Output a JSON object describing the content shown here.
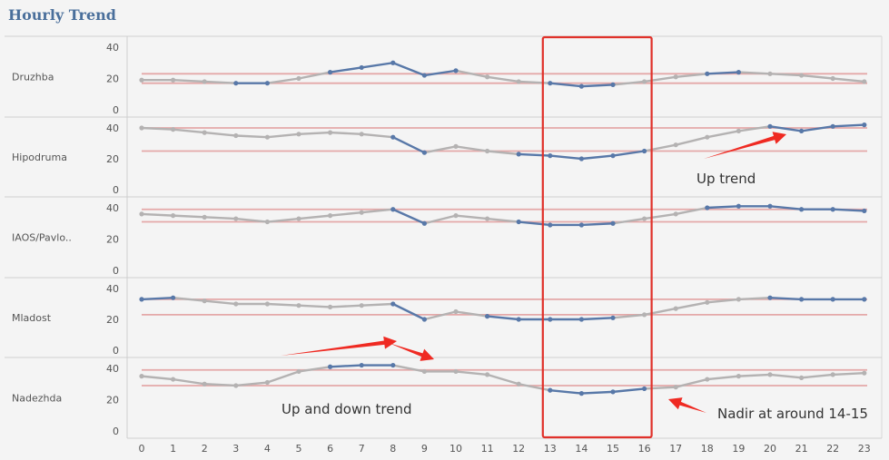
{
  "header": {
    "title": "Hourly Trend"
  },
  "colors": {
    "highlight_line": "#5878a8",
    "base_line": "#b4b2b2",
    "reference": "#e4a8a8",
    "box": "#e0312a",
    "arrow": "#ef2a22"
  },
  "chart_data": {
    "type": "line",
    "x": [
      0,
      1,
      2,
      3,
      4,
      5,
      6,
      7,
      8,
      9,
      10,
      11,
      12,
      13,
      14,
      15,
      16,
      17,
      18,
      19,
      20,
      21,
      22,
      23
    ],
    "xlabel": "",
    "ylabel": "",
    "grid": false,
    "highlight_hours": [
      13,
      14,
      15,
      16
    ],
    "panels": [
      {
        "name": "Druzhba",
        "yticks": [
          "40",
          "20",
          "0"
        ],
        "ylim": [
          0,
          50
        ],
        "values": [
          19,
          19,
          18,
          17,
          17,
          20,
          24,
          27,
          30,
          22,
          25,
          21,
          18,
          17,
          15,
          16,
          18,
          21,
          23,
          24,
          23,
          22,
          20,
          18
        ],
        "highlighted": [
          false,
          false,
          false,
          true,
          true,
          false,
          true,
          true,
          true,
          true,
          true,
          false,
          false,
          true,
          true,
          true,
          false,
          false,
          true,
          true,
          false,
          false,
          false,
          false
        ],
        "reference_lines": [
          23,
          17
        ]
      },
      {
        "name": "Hipodruma",
        "yticks": [
          "40",
          "20",
          "0"
        ],
        "ylim": [
          0,
          50
        ],
        "values": [
          40,
          39,
          37,
          35,
          34,
          36,
          37,
          36,
          34,
          24,
          28,
          25,
          23,
          22,
          20,
          22,
          25,
          29,
          34,
          38,
          41,
          38,
          41,
          42
        ],
        "highlighted": [
          false,
          false,
          false,
          false,
          false,
          false,
          false,
          false,
          true,
          true,
          false,
          false,
          true,
          true,
          true,
          true,
          true,
          false,
          false,
          false,
          true,
          true,
          true,
          true
        ],
        "reference_lines": [
          40,
          25
        ]
      },
      {
        "name": "IAOS/Pavlo..",
        "yticks": [
          "40",
          "20",
          "0"
        ],
        "ylim": [
          0,
          50
        ],
        "values": [
          36,
          35,
          34,
          33,
          31,
          33,
          35,
          37,
          39,
          30,
          35,
          33,
          31,
          29,
          29,
          30,
          33,
          36,
          40,
          41,
          41,
          39,
          39,
          38
        ],
        "highlighted": [
          false,
          false,
          false,
          false,
          false,
          false,
          false,
          false,
          true,
          true,
          false,
          false,
          true,
          true,
          true,
          true,
          false,
          false,
          true,
          true,
          true,
          true,
          true,
          true
        ],
        "reference_lines": [
          39,
          31
        ]
      },
      {
        "name": "Mladost",
        "yticks": [
          "40",
          "20",
          "0"
        ],
        "ylim": [
          0,
          50
        ],
        "values": [
          33,
          34,
          32,
          30,
          30,
          29,
          28,
          29,
          30,
          20,
          25,
          22,
          20,
          20,
          20,
          21,
          23,
          27,
          31,
          33,
          34,
          33,
          33,
          33
        ],
        "highlighted": [
          true,
          true,
          false,
          false,
          false,
          false,
          false,
          false,
          true,
          true,
          false,
          true,
          true,
          true,
          true,
          true,
          false,
          false,
          false,
          false,
          true,
          true,
          true,
          true
        ],
        "reference_lines": [
          33,
          23
        ]
      },
      {
        "name": "Nadezhda",
        "yticks": [
          "40",
          "20",
          "0"
        ],
        "ylim": [
          0,
          50
        ],
        "values": [
          35,
          33,
          30,
          29,
          31,
          38,
          41,
          42,
          42,
          38,
          38,
          36,
          30,
          26,
          24,
          25,
          27,
          28,
          33,
          35,
          36,
          34,
          36,
          37
        ],
        "highlighted": [
          false,
          false,
          false,
          false,
          false,
          false,
          true,
          true,
          true,
          false,
          false,
          false,
          false,
          true,
          true,
          true,
          true,
          false,
          false,
          false,
          false,
          false,
          false,
          false
        ],
        "reference_lines": [
          39,
          29
        ]
      }
    ],
    "annotations": [
      "Up trend",
      "Up and down trend",
      "Nadir at around 14-15"
    ]
  }
}
